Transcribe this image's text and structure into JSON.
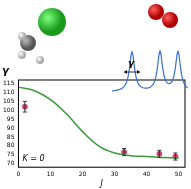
{
  "chart_data": {
    "type": "line",
    "x_label": "J",
    "y_label": "γ",
    "annotations": [
      "K = 0",
      "γ"
    ],
    "xlim": [
      0,
      52
    ],
    "xticks": [
      0,
      10,
      20,
      30,
      40,
      50
    ],
    "ylim": [
      68,
      117
    ],
    "yticks": [
      70,
      75,
      80,
      85,
      90,
      95,
      100,
      105,
      110,
      115
    ],
    "grid": false,
    "series": [
      {
        "type": "line",
        "color": "#3c9a3c",
        "line_style": "solid",
        "x": [
          0,
          5,
          10,
          15,
          20,
          25,
          30,
          35,
          40,
          45,
          50
        ],
        "values": [
          113,
          111,
          106,
          98,
          88,
          80,
          76,
          74.5,
          74,
          73.5,
          73
        ]
      },
      {
        "type": "scatter",
        "color": "#d0406a",
        "marker": "circle",
        "x": [
          2,
          33,
          44,
          49
        ],
        "values": [
          102,
          76.5,
          75.5,
          74
        ],
        "errors": [
          3,
          2,
          2,
          2
        ]
      }
    ]
  }
}
